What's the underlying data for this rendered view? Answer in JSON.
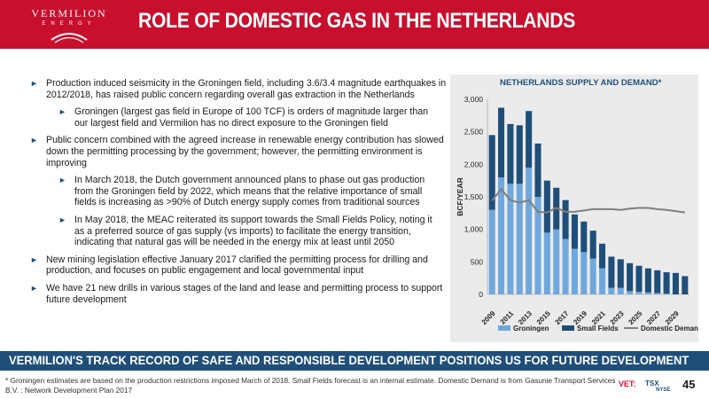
{
  "brand": {
    "name": "VERMILION",
    "sub": "ENERGY",
    "color": "#c8102e",
    "accent": "#1f4e79"
  },
  "header": {
    "title": "ROLE OF DOMESTIC GAS IN THE NETHERLANDS"
  },
  "bullets": [
    {
      "level": 1,
      "text": "Production induced seismicity in the Groningen field, including 3.6/3.4 magnitude earthquakes in 2012/2018, has raised public concern regarding overall gas extraction in the Netherlands"
    },
    {
      "level": 2,
      "text": "Groningen (largest gas field in Europe of 100 TCF) is orders of magnitude larger than our largest field and Vermilion has no direct exposure to the Groningen field"
    },
    {
      "level": 1,
      "text": "Public concern combined with the agreed increase in renewable energy contribution has slowed down the permitting processing by the government; however, the permitting environment is improving"
    },
    {
      "level": 2,
      "text": "In March 2018, the Dutch government announced plans to phase out gas production from the Groningen field by 2022, which means that the relative importance of small fields is increasing as >90% of Dutch energy supply comes from traditional sources"
    },
    {
      "level": 2,
      "text": "In May 2018, the MEAC reiterated its support towards the Small Fields Policy, noting it as a preferred source of gas supply (vs imports) to facilitate the energy transition, indicating that natural gas will be needed in the energy mix at least until 2050"
    },
    {
      "level": 1,
      "text": "New mining legislation effective January 2017 clarified the permitting process for drilling and production, and focuses on public engagement and local governmental input"
    },
    {
      "level": 1,
      "text": "We have 21 new drills in various stages of the land and lease and permitting process to support future development"
    }
  ],
  "chart_data": {
    "type": "bar",
    "title": "NETHERLANDS SUPPLY AND DEMAND*",
    "xlabel": "",
    "ylabel": "BCF/YEAR",
    "ylim": [
      0,
      3000
    ],
    "yticks": [
      0,
      500,
      1000,
      1500,
      2000,
      2500,
      3000
    ],
    "ytick_labels": [
      "0",
      "500",
      "1,000",
      "1,500",
      "2,000",
      "2,500",
      "3,000"
    ],
    "stacked": true,
    "x": [
      2009,
      2010,
      2011,
      2012,
      2013,
      2014,
      2015,
      2016,
      2017,
      2018,
      2019,
      2020,
      2021,
      2022,
      2023,
      2024,
      2025,
      2026,
      2027,
      2028,
      2029,
      2030
    ],
    "xtick_labels": [
      "2009",
      "2011",
      "2013",
      "2015",
      "2017",
      "2019",
      "2021",
      "2023",
      "2025",
      "2027",
      "2029"
    ],
    "series": [
      {
        "name": "Groningen",
        "kind": "bar",
        "color": "#6fa8dc",
        "values": [
          1300,
          1800,
          1700,
          1700,
          1950,
          1500,
          950,
          1000,
          850,
          700,
          650,
          550,
          400,
          100,
          100,
          50,
          40,
          30,
          20,
          10,
          0,
          0
        ]
      },
      {
        "name": "Small Fields",
        "kind": "bar",
        "color": "#1f4e79",
        "values": [
          1150,
          1070,
          920,
          900,
          870,
          820,
          800,
          640,
          600,
          530,
          470,
          430,
          380,
          480,
          440,
          430,
          400,
          370,
          350,
          330,
          330,
          280
        ]
      },
      {
        "name": "Domestic Demand",
        "kind": "line",
        "color": "#7f7f7f",
        "values": [
          1440,
          1620,
          1450,
          1410,
          1450,
          1270,
          1260,
          1330,
          1270,
          1270,
          1290,
          1310,
          1310,
          1310,
          1300,
          1320,
          1330,
          1330,
          1310,
          1300,
          1280,
          1260
        ]
      }
    ],
    "legend": [
      "Groningen",
      "Small Fields",
      "Domestic Demand"
    ],
    "legend_position": "bottom",
    "grid": false
  },
  "banner": {
    "text": "VERMILION'S TRACK RECORD OF SAFE AND RESPONSIBLE DEVELOPMENT POSITIONS US FOR FUTURE DEVELOPMENT"
  },
  "footnote": "* Groningen estimates are based on the production restrictions imposed March of 2018. Small Fields forecast is an internal estimate. Domestic Demand is from Gasunie Transport Services B.V. : Network Development Plan 2017",
  "exchange": {
    "vet": "VET:",
    "tsx": "TSX",
    "nyse": "NYSE"
  },
  "page_number": "45"
}
